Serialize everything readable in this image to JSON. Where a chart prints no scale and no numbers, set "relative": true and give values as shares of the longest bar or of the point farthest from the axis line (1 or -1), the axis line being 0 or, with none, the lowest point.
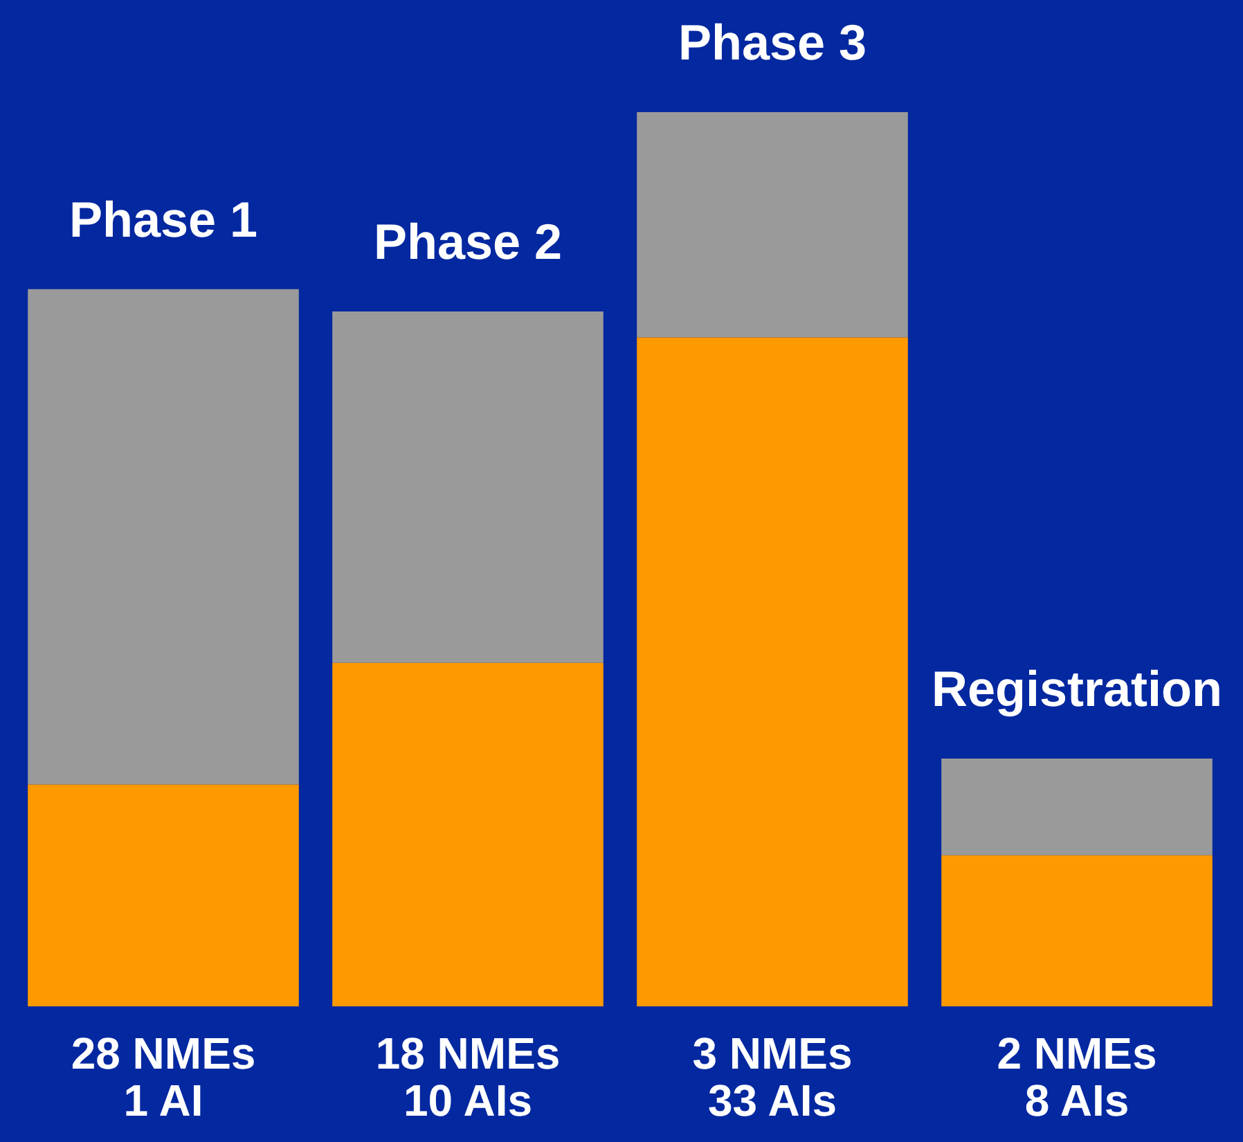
{
  "chart_data": {
    "type": "bar",
    "stacked": true,
    "relative": true,
    "categories": [
      "Phase 1",
      "Phase 2",
      "Phase 3",
      "Registration"
    ],
    "series": [
      {
        "color": "#ff9900",
        "values": [
          0.248,
          0.384,
          0.748,
          0.169
        ]
      },
      {
        "color": "#9a9a9a",
        "values": [
          0.554,
          0.393,
          0.252,
          0.108
        ]
      }
    ],
    "annotations": [
      "28 NMEs\n1 AI",
      "18 NMEs\n10 AIs",
      "3 NMEs\n33 AIs",
      "2 NMEs\n8 AIs"
    ]
  }
}
